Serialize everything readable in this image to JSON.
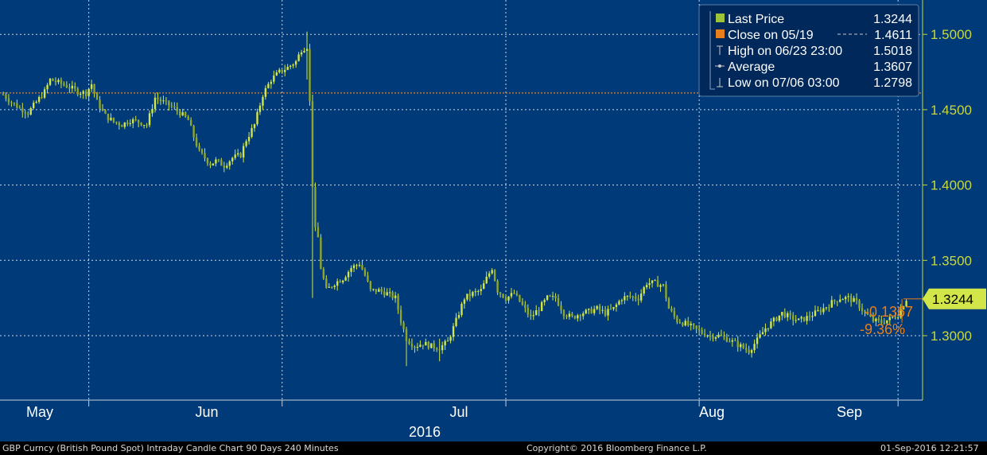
{
  "chart_data": {
    "type": "candlestick",
    "title": "GBP Curncy (British Pound Spot) Intraday Candle Chart 90 Days 240 Minutes",
    "year_label": "2016",
    "x_months": [
      "May",
      "Jun",
      "Jul",
      "Aug",
      "Sep"
    ],
    "ylim": [
      1.26,
      1.52
    ],
    "y_ticks": [
      1.3,
      1.35,
      1.4,
      1.45,
      1.5
    ],
    "y_tick_labels": [
      "1.3000",
      "1.3500",
      "1.4000",
      "1.4500",
      "1.5000"
    ],
    "grid": true,
    "legend_position": "top-right",
    "legend": [
      {
        "label": "Last Price",
        "value": "1.3244",
        "icon": "square-green"
      },
      {
        "label": "Close on 05/19",
        "value": "1.4611",
        "icon": "square-orange"
      },
      {
        "label": "High on 06/23 23:00",
        "value": "1.5018",
        "icon": "high-marker"
      },
      {
        "label": "Average",
        "value": "1.3607",
        "icon": "average-marker"
      },
      {
        "label": "Low on 07/06 03:00",
        "value": "1.2798",
        "icon": "low-marker"
      }
    ],
    "reference_line": {
      "label": "Close on 05/19",
      "value": 1.4611
    },
    "last_price": {
      "value": 1.3244,
      "label": "1.3244"
    },
    "change_labels": {
      "abs": "-0.1367",
      "pct": "-9.36%"
    },
    "trend": [
      {
        "x": 0,
        "y": 1.46
      },
      {
        "x": 3,
        "y": 1.455
      },
      {
        "x": 6,
        "y": 1.451
      },
      {
        "x": 9,
        "y": 1.448
      },
      {
        "x": 12,
        "y": 1.455
      },
      {
        "x": 15,
        "y": 1.462
      },
      {
        "x": 17,
        "y": 1.47
      },
      {
        "x": 20,
        "y": 1.468
      },
      {
        "x": 24,
        "y": 1.465
      },
      {
        "x": 27,
        "y": 1.462
      },
      {
        "x": 30,
        "y": 1.461
      },
      {
        "x": 32,
        "y": 1.467
      },
      {
        "x": 34,
        "y": 1.455
      },
      {
        "x": 37,
        "y": 1.446
      },
      {
        "x": 40,
        "y": 1.442
      },
      {
        "x": 43,
        "y": 1.44
      },
      {
        "x": 46,
        "y": 1.443
      },
      {
        "x": 49,
        "y": 1.442
      },
      {
        "x": 52,
        "y": 1.44
      },
      {
        "x": 55,
        "y": 1.458
      },
      {
        "x": 58,
        "y": 1.455
      },
      {
        "x": 61,
        "y": 1.452
      },
      {
        "x": 64,
        "y": 1.448
      },
      {
        "x": 67,
        "y": 1.443
      },
      {
        "x": 69,
        "y": 1.432
      },
      {
        "x": 71,
        "y": 1.422
      },
      {
        "x": 73,
        "y": 1.418
      },
      {
        "x": 75,
        "y": 1.414
      },
      {
        "x": 77,
        "y": 1.416
      },
      {
        "x": 80,
        "y": 1.413
      },
      {
        "x": 83,
        "y": 1.418
      },
      {
        "x": 86,
        "y": 1.42
      },
      {
        "x": 88,
        "y": 1.43
      },
      {
        "x": 91,
        "y": 1.44
      },
      {
        "x": 94,
        "y": 1.46
      },
      {
        "x": 97,
        "y": 1.47
      },
      {
        "x": 100,
        "y": 1.475
      },
      {
        "x": 103,
        "y": 1.478
      },
      {
        "x": 106,
        "y": 1.482
      },
      {
        "x": 108,
        "y": 1.49
      },
      {
        "x": 110,
        "y": 1.492
      },
      {
        "x": 111,
        "y": 1.455
      },
      {
        "x": 112,
        "y": 1.4
      },
      {
        "x": 113,
        "y": 1.37
      },
      {
        "x": 114,
        "y": 1.365
      },
      {
        "x": 115,
        "y": 1.345
      },
      {
        "x": 117,
        "y": 1.33
      },
      {
        "x": 120,
        "y": 1.335
      },
      {
        "x": 123,
        "y": 1.338
      },
      {
        "x": 126,
        "y": 1.345
      },
      {
        "x": 129,
        "y": 1.348
      },
      {
        "x": 131,
        "y": 1.34
      },
      {
        "x": 133,
        "y": 1.33
      },
      {
        "x": 136,
        "y": 1.33
      },
      {
        "x": 139,
        "y": 1.328
      },
      {
        "x": 142,
        "y": 1.325
      },
      {
        "x": 144,
        "y": 1.31
      },
      {
        "x": 146,
        "y": 1.298
      },
      {
        "x": 149,
        "y": 1.293
      },
      {
        "x": 152,
        "y": 1.295
      },
      {
        "x": 155,
        "y": 1.293
      },
      {
        "x": 158,
        "y": 1.292
      },
      {
        "x": 161,
        "y": 1.296
      },
      {
        "x": 164,
        "y": 1.31
      },
      {
        "x": 167,
        "y": 1.325
      },
      {
        "x": 170,
        "y": 1.328
      },
      {
        "x": 173,
        "y": 1.33
      },
      {
        "x": 175,
        "y": 1.338
      },
      {
        "x": 177,
        "y": 1.345
      },
      {
        "x": 179,
        "y": 1.33
      },
      {
        "x": 182,
        "y": 1.325
      },
      {
        "x": 185,
        "y": 1.328
      },
      {
        "x": 188,
        "y": 1.32
      },
      {
        "x": 191,
        "y": 1.312
      },
      {
        "x": 194,
        "y": 1.318
      },
      {
        "x": 197,
        "y": 1.325
      },
      {
        "x": 200,
        "y": 1.325
      },
      {
        "x": 203,
        "y": 1.315
      },
      {
        "x": 206,
        "y": 1.312
      },
      {
        "x": 209,
        "y": 1.315
      },
      {
        "x": 212,
        "y": 1.316
      },
      {
        "x": 215,
        "y": 1.318
      },
      {
        "x": 218,
        "y": 1.315
      },
      {
        "x": 221,
        "y": 1.318
      },
      {
        "x": 224,
        "y": 1.325
      },
      {
        "x": 227,
        "y": 1.326
      },
      {
        "x": 230,
        "y": 1.325
      },
      {
        "x": 233,
        "y": 1.335
      },
      {
        "x": 236,
        "y": 1.335
      },
      {
        "x": 239,
        "y": 1.333
      },
      {
        "x": 241,
        "y": 1.318
      },
      {
        "x": 244,
        "y": 1.31
      },
      {
        "x": 247,
        "y": 1.308
      },
      {
        "x": 250,
        "y": 1.305
      },
      {
        "x": 253,
        "y": 1.302
      },
      {
        "x": 256,
        "y": 1.3
      },
      {
        "x": 259,
        "y": 1.3
      },
      {
        "x": 262,
        "y": 1.298
      },
      {
        "x": 265,
        "y": 1.295
      },
      {
        "x": 268,
        "y": 1.292
      },
      {
        "x": 270,
        "y": 1.29
      },
      {
        "x": 273,
        "y": 1.297
      },
      {
        "x": 276,
        "y": 1.305
      },
      {
        "x": 279,
        "y": 1.31
      },
      {
        "x": 282,
        "y": 1.315
      },
      {
        "x": 285,
        "y": 1.312
      },
      {
        "x": 288,
        "y": 1.31
      },
      {
        "x": 291,
        "y": 1.312
      },
      {
        "x": 294,
        "y": 1.315
      },
      {
        "x": 297,
        "y": 1.318
      },
      {
        "x": 300,
        "y": 1.322
      },
      {
        "x": 303,
        "y": 1.325
      },
      {
        "x": 306,
        "y": 1.325
      },
      {
        "x": 309,
        "y": 1.322
      },
      {
        "x": 312,
        "y": 1.315
      },
      {
        "x": 315,
        "y": 1.31
      },
      {
        "x": 318,
        "y": 1.309
      },
      {
        "x": 321,
        "y": 1.311
      },
      {
        "x": 324,
        "y": 1.314
      },
      {
        "x": 327,
        "y": 1.3244
      }
    ],
    "extremes": [
      {
        "x": 110,
        "high": 1.5018,
        "low": 1.47
      },
      {
        "x": 112,
        "high": 1.46,
        "low": 1.325
      },
      {
        "x": 146,
        "high": 1.302,
        "low": 1.2798
      },
      {
        "x": 158,
        "high": 1.298,
        "low": 1.283
      }
    ]
  },
  "footer": {
    "source": "GBP Curncy (British Pound Spot) Intraday Candle Chart 90 Days 240 Minutes",
    "copyright": "Copyright© 2016 Bloomberg Finance L.P.",
    "timestamp": "01-Sep-2016 12:21:57"
  },
  "colors": {
    "background": "#003a78",
    "price": "#d2e64a",
    "reference": "#e87f1a",
    "axis_label": "#c8d83a",
    "grid": "#ffffff",
    "legend_bg": "#00285a",
    "text": "#ffffff"
  }
}
